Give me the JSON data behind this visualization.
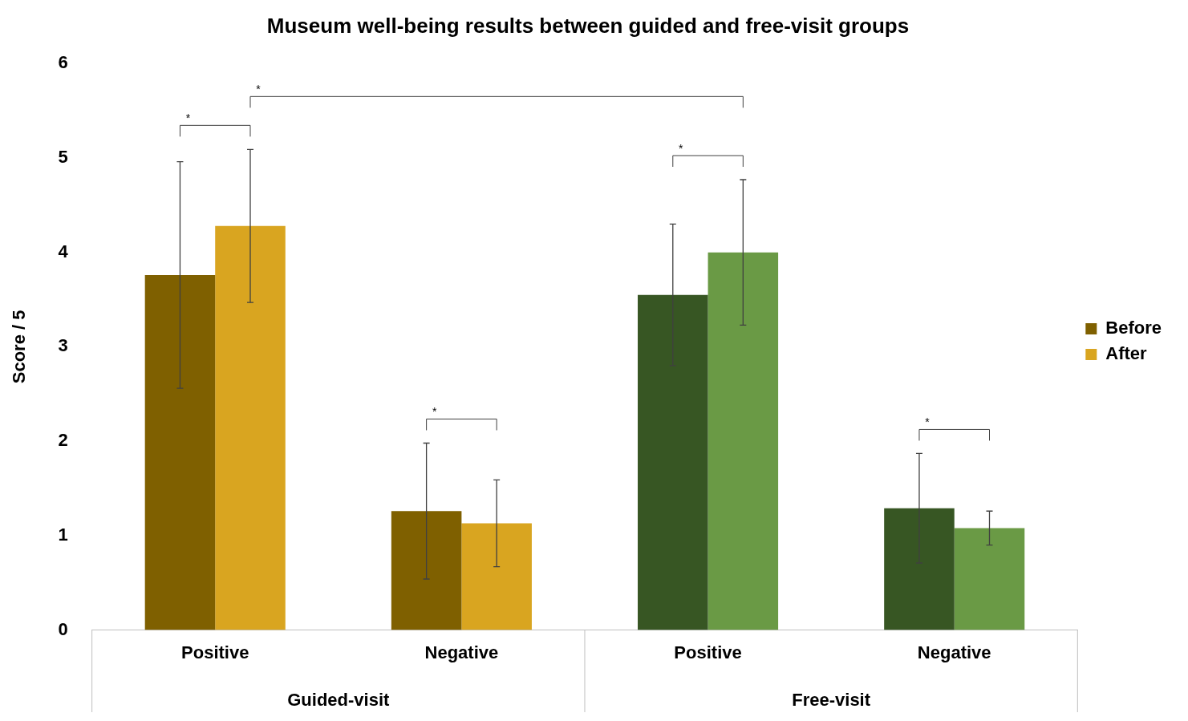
{
  "chart_data": {
    "type": "bar",
    "title": "Museum well-being results between guided and free-visit groups",
    "ylabel": "Score / 5",
    "categories": [
      "Positive",
      "Negative",
      "Positive",
      "Negative"
    ],
    "series": [
      {
        "name": "Before",
        "color": "#7f6000",
        "colors": [
          "#7f6000",
          "#7f6000",
          "#375623",
          "#375623"
        ],
        "values": [
          3.76,
          1.26,
          3.55,
          1.29
        ],
        "errors": [
          1.2,
          0.72,
          0.75,
          0.58
        ]
      },
      {
        "name": "After",
        "color": "#d9a520",
        "colors": [
          "#d9a520",
          "#d9a520",
          "#6a9a45",
          "#6a9a45"
        ],
        "values": [
          4.28,
          1.13,
          4.0,
          1.08
        ],
        "errors": [
          0.81,
          0.46,
          0.77,
          0.18
        ]
      }
    ],
    "ylim": [
      0,
      6
    ],
    "yticks": [
      0,
      1,
      2,
      3,
      4,
      5,
      6
    ],
    "grid": false,
    "legend": "right",
    "annotations": [
      "*",
      "*",
      "*",
      "*",
      "*",
      "Guided-visit",
      "Free-visit"
    ]
  }
}
